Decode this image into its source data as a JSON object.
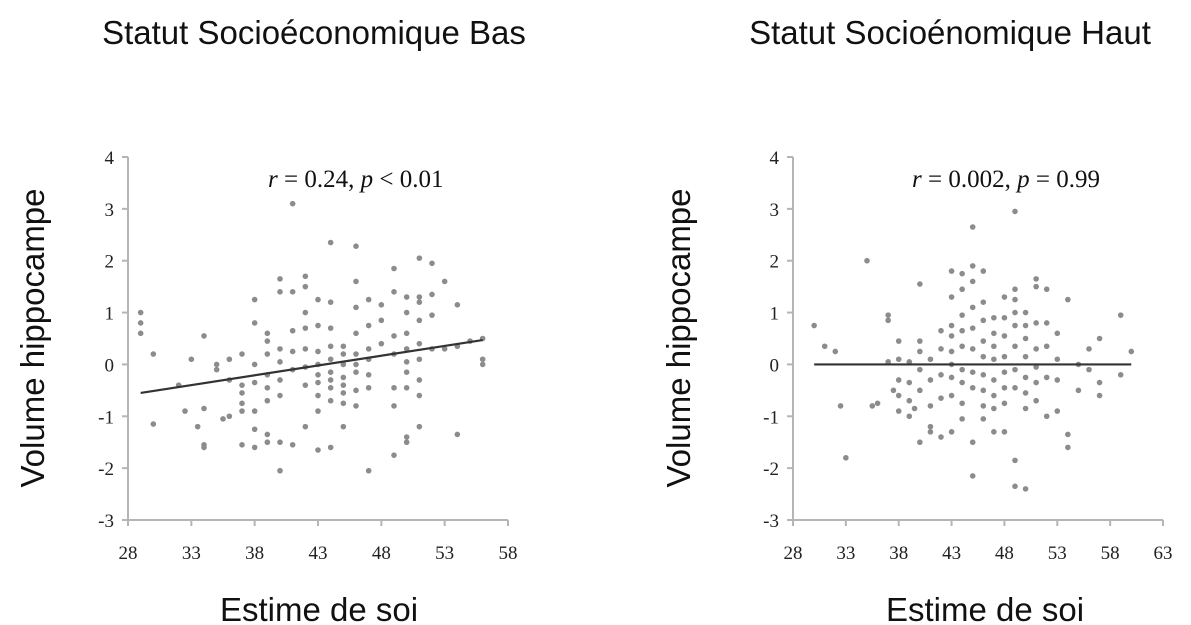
{
  "chart_data": [
    {
      "type": "scatter",
      "title": "Statut Socioéconomique Bas",
      "xlabel": "Estime de soi",
      "ylabel": "Volume hippocampe",
      "xlim": [
        28,
        58
      ],
      "ylim": [
        -3,
        4
      ],
      "xticks": [
        "28",
        "33",
        "38",
        "43",
        "48",
        "53",
        "58"
      ],
      "yticks": [
        "4",
        "3",
        "2",
        "1",
        "0",
        "-1",
        "-2",
        "-3"
      ],
      "annotation": {
        "r_sym": "r",
        "r_text": " = 0.24, ",
        "p_sym": "p",
        "p_text": " < 0.01"
      },
      "trendline": {
        "x": [
          29,
          56
        ],
        "y": [
          -0.55,
          0.47
        ]
      },
      "x": [
        29,
        29,
        29,
        30,
        30,
        32,
        32.5,
        33,
        33.5,
        34,
        34,
        34,
        34,
        35,
        35,
        35.5,
        36,
        36,
        36,
        37,
        37,
        37,
        37,
        37,
        37,
        38,
        38,
        38,
        38,
        38,
        38,
        38,
        39,
        39,
        39,
        39,
        39,
        39,
        39,
        39,
        40,
        40,
        40,
        40,
        40,
        40,
        40,
        40,
        41,
        41,
        41,
        41,
        41,
        41,
        42,
        42,
        42,
        42,
        42,
        42,
        42,
        42,
        43,
        43,
        43,
        43,
        43,
        43,
        43,
        43,
        43,
        44,
        44,
        44,
        44,
        44,
        44,
        44,
        44,
        44,
        44,
        45,
        45,
        45,
        45,
        45,
        45,
        45,
        45,
        46,
        46,
        46,
        46,
        46,
        46,
        46,
        46,
        46,
        47,
        47,
        47,
        47,
        47,
        47,
        47,
        48,
        48,
        48,
        49,
        49,
        49,
        49,
        49,
        49,
        49,
        50,
        50,
        50,
        50,
        50,
        50,
        50,
        50,
        50,
        51,
        51,
        51,
        51,
        51,
        51,
        51,
        51,
        51,
        52,
        52,
        52,
        52,
        53,
        53,
        54,
        54,
        54,
        55,
        56,
        56,
        56
      ],
      "y": [
        1.0,
        0.8,
        0.6,
        0.2,
        -1.15,
        -0.4,
        -0.9,
        0.1,
        -1.2,
        0.55,
        -0.85,
        -1.55,
        -1.6,
        0.0,
        -0.1,
        -1.05,
        0.1,
        -0.3,
        -1.0,
        0.2,
        -0.4,
        -0.55,
        -0.75,
        -0.9,
        -1.55,
        1.25,
        0.8,
        0.0,
        -0.35,
        -0.9,
        -1.25,
        -1.6,
        0.6,
        0.45,
        0.2,
        -0.2,
        -0.45,
        -0.7,
        -1.35,
        -1.5,
        1.65,
        1.4,
        0.3,
        0.05,
        -0.3,
        -0.6,
        -1.5,
        -2.05,
        3.1,
        1.4,
        0.65,
        0.25,
        -0.1,
        -1.55,
        1.7,
        1.5,
        1.0,
        0.7,
        0.3,
        -0.05,
        -0.4,
        -1.2,
        1.25,
        0.75,
        0.25,
        0.0,
        -0.2,
        -0.35,
        -0.6,
        -0.9,
        -1.65,
        2.35,
        1.2,
        0.7,
        0.35,
        0.1,
        -0.15,
        -0.3,
        -0.45,
        -0.7,
        -1.6,
        0.35,
        0.2,
        0.0,
        -0.25,
        -0.4,
        -0.55,
        -0.75,
        -1.2,
        2.28,
        1.6,
        1.1,
        0.6,
        0.2,
        0.0,
        -0.15,
        -0.5,
        -0.8,
        1.25,
        0.75,
        0.3,
        0.1,
        -0.2,
        -0.45,
        -2.05,
        1.15,
        0.85,
        0.4,
        1.85,
        1.4,
        0.55,
        0.2,
        -0.45,
        -0.8,
        -1.75,
        1.3,
        1.0,
        0.6,
        0.3,
        0.05,
        -0.15,
        -0.45,
        -1.4,
        -1.5,
        2.05,
        1.3,
        1.2,
        0.85,
        0.4,
        0.1,
        -0.3,
        -0.6,
        -1.2,
        1.95,
        1.35,
        0.95,
        0.3,
        1.6,
        0.3,
        1.15,
        0.35,
        -1.35,
        0.45,
        0.5,
        0.1,
        0.0
      ]
    },
    {
      "type": "scatter",
      "title": "Statut Socioénomique Haut",
      "xlabel": "Estime de soi",
      "ylabel": "Volume hippocampe",
      "xlim": [
        28,
        63
      ],
      "ylim": [
        -3,
        4
      ],
      "xticks": [
        "28",
        "33",
        "38",
        "43",
        "48",
        "53",
        "58",
        "63"
      ],
      "yticks": [
        "4",
        "3",
        "2",
        "1",
        "0",
        "-1",
        "-2",
        "-3"
      ],
      "annotation": {
        "r_sym": "r",
        "r_text": " = 0.002, ",
        "p_sym": "p",
        "p_text": " = 0.99"
      },
      "trendline": {
        "x": [
          30,
          60
        ],
        "y": [
          0.0,
          0.0
        ]
      },
      "x": [
        30,
        31,
        32,
        32.5,
        33,
        35,
        35.5,
        36,
        37,
        37,
        37,
        37.5,
        38,
        38,
        38,
        38,
        38,
        39,
        39,
        39,
        39,
        39.5,
        40,
        40,
        40,
        40,
        40,
        40,
        41,
        41,
        41,
        41,
        41,
        42,
        42,
        42,
        42,
        42,
        43,
        43,
        43,
        43,
        43,
        43,
        43,
        43,
        43,
        44,
        44,
        44,
        44,
        44,
        44,
        44,
        44,
        44,
        45,
        45,
        45,
        45,
        45,
        45,
        45,
        45,
        45,
        45,
        46,
        46,
        46,
        46,
        46,
        46,
        46,
        46,
        46,
        47,
        47,
        47,
        47,
        47,
        47,
        47,
        47,
        48,
        48,
        48,
        48,
        48,
        48,
        48,
        48,
        49,
        49,
        49,
        49,
        49,
        49,
        49,
        49,
        49,
        49,
        50,
        50,
        50,
        50,
        50,
        50,
        50,
        50,
        51,
        51,
        51,
        51,
        51,
        51,
        51,
        52,
        52,
        52,
        52,
        52,
        53,
        53,
        53,
        53,
        54,
        54,
        54,
        55,
        55,
        56,
        56,
        57,
        57,
        57,
        59,
        59,
        60
      ],
      "y": [
        0.75,
        0.35,
        0.25,
        -0.8,
        -1.8,
        2.0,
        -0.8,
        -0.75,
        0.95,
        0.85,
        0.05,
        -0.5,
        0.45,
        0.1,
        -0.3,
        -0.6,
        -0.9,
        0.05,
        -0.35,
        -0.7,
        -1.0,
        -0.85,
        1.55,
        0.45,
        0.25,
        -0.1,
        -0.5,
        -1.5,
        0.1,
        -0.3,
        -0.8,
        -1.3,
        -1.2,
        0.65,
        0.3,
        -0.2,
        -0.65,
        -1.4,
        1.8,
        1.3,
        0.75,
        0.55,
        0.25,
        0.0,
        -0.25,
        -0.6,
        -1.3,
        1.75,
        1.45,
        0.95,
        0.65,
        0.35,
        -0.1,
        -0.35,
        -0.75,
        -1.05,
        2.65,
        1.9,
        1.6,
        1.1,
        0.7,
        0.3,
        -0.15,
        -0.45,
        -1.5,
        -2.15,
        1.8,
        1.2,
        0.85,
        0.45,
        0.15,
        -0.2,
        -0.5,
        -0.8,
        -1.05,
        0.9,
        0.6,
        0.35,
        0.1,
        -0.3,
        -0.6,
        -0.85,
        -1.3,
        1.3,
        0.9,
        0.55,
        0.15,
        -0.15,
        -0.45,
        -0.75,
        -1.3,
        2.95,
        1.45,
        1.25,
        1.0,
        0.75,
        0.35,
        -0.1,
        -0.45,
        -1.85,
        -2.35,
        1.0,
        0.75,
        0.5,
        0.15,
        -0.25,
        -0.55,
        -0.85,
        -2.4,
        1.65,
        1.5,
        0.8,
        0.3,
        -0.05,
        -0.35,
        -0.7,
        1.45,
        0.8,
        0.35,
        -0.25,
        -1.0,
        0.6,
        0.1,
        -0.3,
        -0.9,
        1.25,
        -1.35,
        -1.6,
        0.0,
        -0.5,
        0.3,
        -0.1,
        0.5,
        -0.35,
        -0.6,
        0.95,
        -0.2,
        0.25
      ]
    }
  ]
}
